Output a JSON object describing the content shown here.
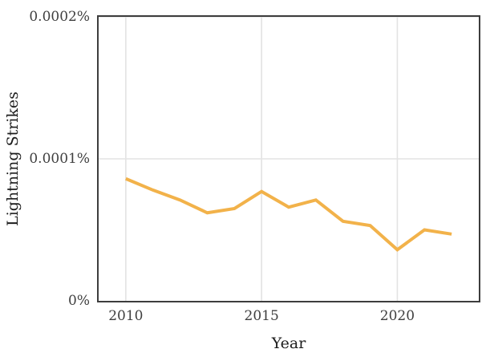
{
  "chart_data": {
    "type": "line",
    "title": "",
    "xlabel": "Year",
    "ylabel": "Lightning Strikes",
    "x": [
      2010,
      2011,
      2012,
      2013,
      2014,
      2015,
      2016,
      2017,
      2018,
      2019,
      2020,
      2021,
      2022
    ],
    "values": [
      8.6e-05,
      7.8e-05,
      7.1e-05,
      6.2e-05,
      6.5e-05,
      7.7e-05,
      6.6e-05,
      7.1e-05,
      5.6e-05,
      5.3e-05,
      3.6e-05,
      5e-05,
      4.7e-05
    ],
    "series_name": "Lightning Strikes",
    "xlim": [
      2009,
      2023
    ],
    "ylim": [
      0,
      0.0002
    ],
    "xticks": [
      {
        "value": 2010,
        "label": "2010"
      },
      {
        "value": 2015,
        "label": "2015"
      },
      {
        "value": 2020,
        "label": "2020"
      }
    ],
    "yticks": [
      {
        "value": 0,
        "label": "0%"
      },
      {
        "value": 0.0001,
        "label": "0.0001%"
      },
      {
        "value": 0.0002,
        "label": "0.0002%"
      }
    ],
    "grid": true,
    "legend": "none",
    "colors": {
      "line": "#F2B24A",
      "grid": "#E3E3E3",
      "spine": "#3D3D3D",
      "tick_text": "#3F3F3F",
      "label_text": "#1C1C1C",
      "background": "#FFFFFF"
    }
  }
}
